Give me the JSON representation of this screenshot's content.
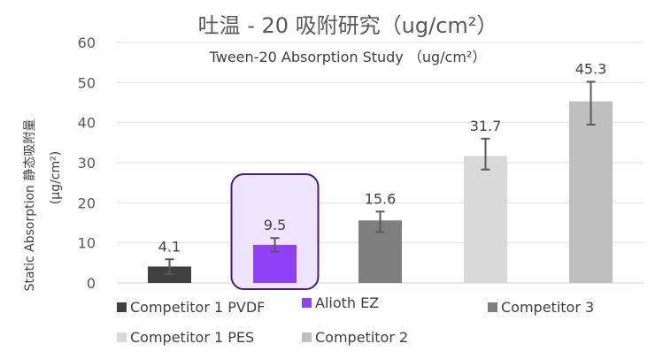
{
  "chart_data": {
    "type": "bar",
    "title": "吐温 - 20 吸附研究（ug/cm²）",
    "subtitle": "Tween-20 Absorption Study （ug/cm²）",
    "ylabel_line1": "Static Absorption 静态吸附量",
    "ylabel_line2": "(μg/cm²)",
    "ylim": [
      0,
      60
    ],
    "yticks": [
      0,
      10,
      20,
      30,
      40,
      50,
      60
    ],
    "grid": true,
    "legend_position": "bottom",
    "categories": [
      "Competitor 1 PVDF",
      "Alioth EZ",
      "Competitor 3",
      "Competitor 1 PES",
      "Competitor 2"
    ],
    "values": [
      4.1,
      9.5,
      15.6,
      31.7,
      45.3
    ],
    "error_low": [
      2.2,
      7.8,
      12.7,
      28.3,
      39.5
    ],
    "error_high": [
      5.9,
      11.2,
      17.8,
      36.0,
      50.2
    ],
    "data_labels": [
      "4.1",
      "9.5",
      "15.6",
      "31.7",
      "45.3"
    ],
    "colors": [
      "#404040",
      "#9141f5",
      "#7f7f7f",
      "#d9d9d9",
      "#bfbfbf"
    ],
    "highlight": {
      "category": "Alioth EZ",
      "fill": "#ede4fd",
      "stroke": "#4b1a7a"
    }
  }
}
